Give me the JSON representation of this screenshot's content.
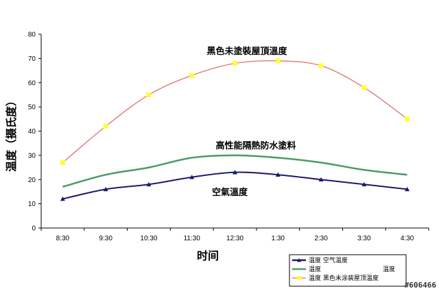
{
  "chart_data": {
    "type": "line",
    "title": "",
    "xlabel": "时间",
    "ylabel": "温度（摄氏度）",
    "ylim": [
      0,
      80
    ],
    "yticks": [
      0,
      10,
      20,
      30,
      40,
      50,
      60,
      70,
      80
    ],
    "categories": [
      "8:30",
      "9:30",
      "10:30",
      "11:30",
      "12:30",
      "1:30",
      "2:30",
      "3:30",
      "4:30"
    ],
    "grid": false,
    "legend_position": "bottom-right",
    "series": [
      {
        "key": "air",
        "name": "温度 空气温度",
        "color": "#1a1a6e",
        "marker": "triangle",
        "annotation": "空氣溫度",
        "values": [
          12,
          16,
          18,
          21,
          23,
          22,
          20,
          18,
          16
        ]
      },
      {
        "key": "coating",
        "name": "温度　　　　　　　　　　温度",
        "color": "#4a9a6a",
        "marker": "none",
        "annotation": "高性能隔熱防水塗料",
        "values": [
          17,
          22,
          25,
          29,
          30,
          29,
          27,
          24,
          22
        ]
      },
      {
        "key": "roof",
        "name": "温度 黑色未涂装屋顶温度",
        "color": "#e07070",
        "marker": "square",
        "marker_color": "#ffff33",
        "annotation": "黑色未塗裝屋頂溫度",
        "values": [
          27,
          42,
          55,
          63,
          68,
          69,
          67,
          58,
          45
        ]
      }
    ]
  },
  "watermark": "#606466"
}
